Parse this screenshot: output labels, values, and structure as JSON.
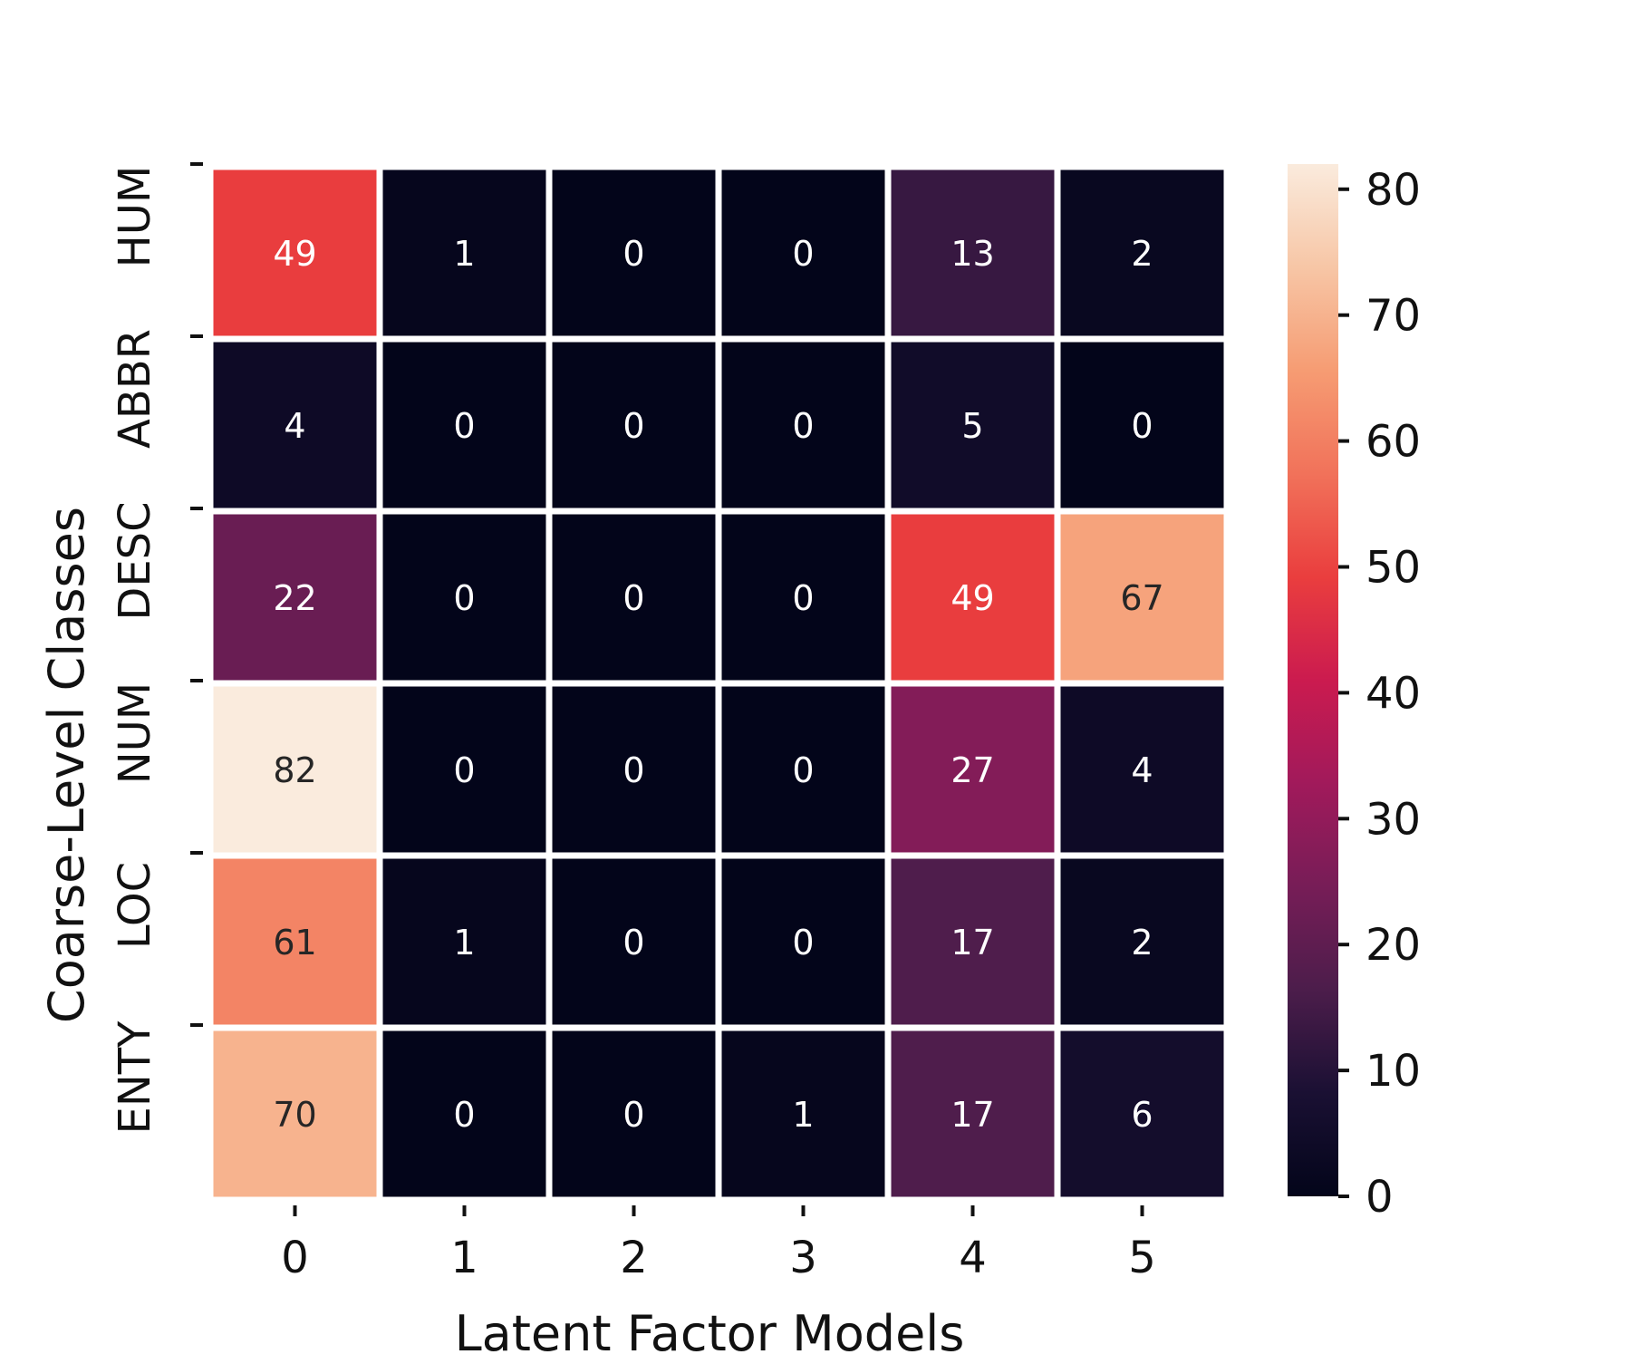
{
  "chart_data": {
    "type": "heatmap",
    "xlabel": "Latent Factor Models",
    "ylabel": "Coarse-Level Classes",
    "x_categories": [
      "0",
      "1",
      "2",
      "3",
      "4",
      "5"
    ],
    "y_categories": [
      "HUM",
      "ABBR",
      "DESC",
      "NUM",
      "LOC",
      "ENTY"
    ],
    "values": [
      [
        49,
        1,
        0,
        0,
        13,
        2
      ],
      [
        4,
        0,
        0,
        0,
        5,
        0
      ],
      [
        22,
        0,
        0,
        0,
        49,
        67
      ],
      [
        82,
        0,
        0,
        0,
        27,
        4
      ],
      [
        61,
        1,
        0,
        0,
        17,
        2
      ],
      [
        70,
        0,
        0,
        1,
        17,
        6
      ]
    ],
    "annotations": true,
    "colorbar": {
      "min": 0,
      "max": 82,
      "ticks": [
        0,
        10,
        20,
        30,
        40,
        50,
        60,
        70,
        80
      ],
      "tick_labels": [
        "0",
        "10",
        "20",
        "30",
        "40",
        "50",
        "60",
        "70",
        "80"
      ],
      "colormap": "rocket"
    },
    "colormap_stops": [
      [
        0.0,
        "#03051a"
      ],
      [
        0.1,
        "#1a1033"
      ],
      [
        0.2,
        "#4c1d4b"
      ],
      [
        0.3,
        "#771d57"
      ],
      [
        0.4,
        "#a11a5b"
      ],
      [
        0.5,
        "#cb1b4f"
      ],
      [
        0.6,
        "#ea3e3e"
      ],
      [
        0.7,
        "#f1725a"
      ],
      [
        0.8,
        "#f69c73"
      ],
      [
        0.9,
        "#f7c6a6"
      ],
      [
        1.0,
        "#faebdd"
      ]
    ]
  }
}
